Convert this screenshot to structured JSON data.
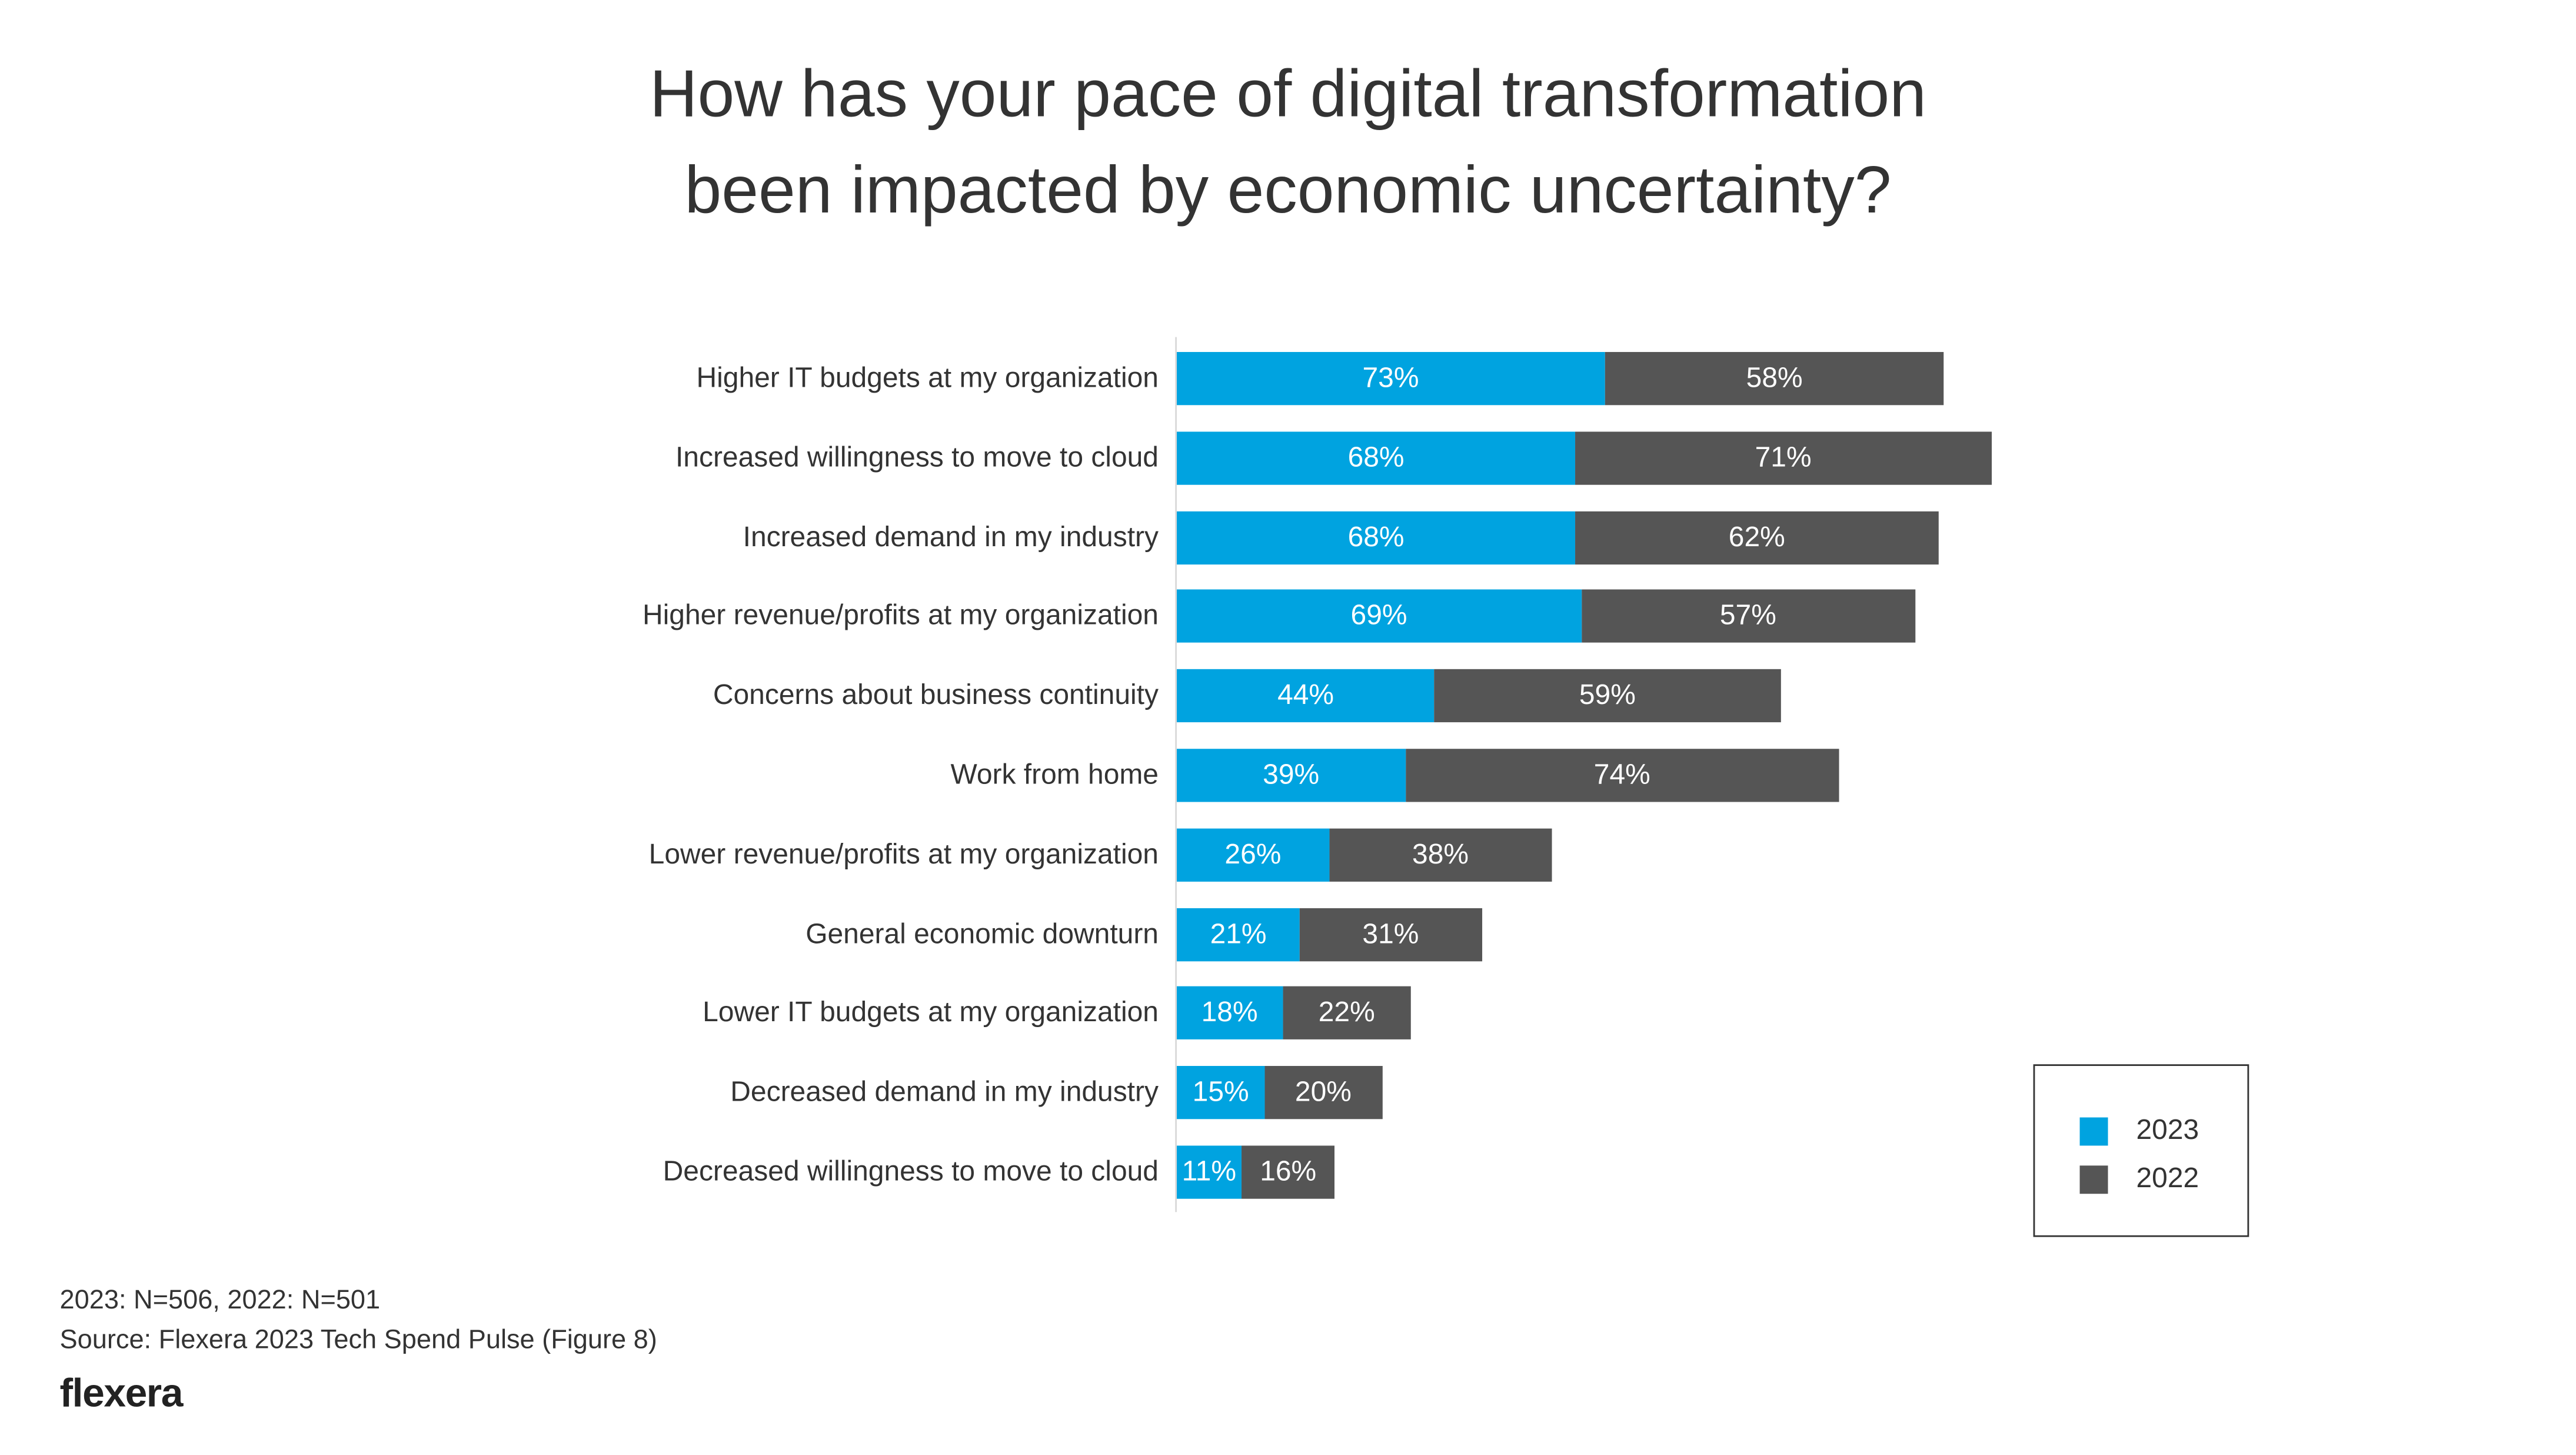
{
  "chart_data": {
    "type": "bar",
    "orientation": "horizontal",
    "stacked": true,
    "title": "How has your pace of digital transformation been impacted by economic uncertainty?",
    "title_lines": [
      "How has your pace of digital transformation",
      "been impacted by economic uncertainty?"
    ],
    "categories": [
      "Higher IT budgets at my organization",
      "Increased willingness to move to cloud",
      "Increased demand in my industry",
      "Higher revenue/profits at my organization",
      "Concerns about business continuity",
      "Work from home",
      "Lower revenue/profits at my organization",
      "General economic downturn",
      "Lower IT budgets at my organization",
      "Decreased demand in my industry",
      "Decreased willingness to move to cloud"
    ],
    "series": [
      {
        "name": "2023",
        "color": "#00A3E0",
        "values": [
          73,
          68,
          68,
          69,
          44,
          39,
          26,
          21,
          18,
          15,
          11
        ]
      },
      {
        "name": "2022",
        "color": "#555555",
        "values": [
          58,
          71,
          62,
          57,
          59,
          74,
          38,
          31,
          22,
          20,
          16
        ]
      }
    ],
    "value_suffix": "%",
    "grid": false,
    "legend_placement": "bottom-right"
  },
  "footer": {
    "sample": "2023: N=506, 2022: N=501",
    "source": "Source: Flexera 2023 Tech Spend Pulse (Figure 8)",
    "logo": "flexera"
  }
}
